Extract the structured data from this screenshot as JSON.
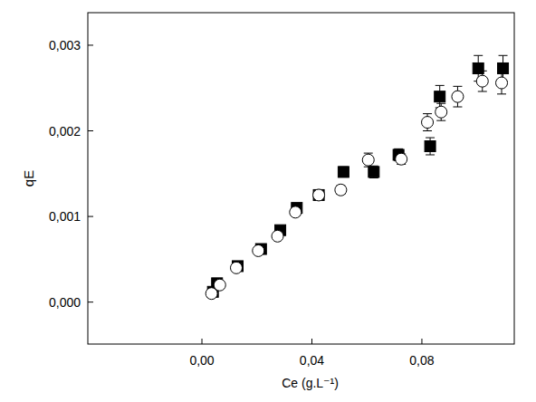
{
  "chart_data": {
    "type": "scatter",
    "x_label": "Ce  (g.L⁻¹)",
    "y_label": "qE",
    "xlim": [
      -0.0415,
      0.1136
    ],
    "ylim": [
      -0.00049,
      0.00338
    ],
    "xticks": [
      {
        "value": 0,
        "label": "0,00"
      },
      {
        "value": 0.04,
        "label": "0,04"
      },
      {
        "value": 0.08,
        "label": "0,08"
      }
    ],
    "yticks": [
      {
        "value": 0,
        "label": "0,000"
      },
      {
        "value": 0.001,
        "label": "0,001"
      },
      {
        "value": 0.002,
        "label": "0,002"
      },
      {
        "value": 0.003,
        "label": "0,003"
      }
    ],
    "grid": false,
    "series": [
      {
        "marker": "square",
        "color": "#000000",
        "x": [
          0.004,
          0.0055,
          0.013,
          0.0215,
          0.0285,
          0.0345,
          0.0425,
          0.0515,
          0.0625,
          0.0715,
          0.083,
          0.0865,
          0.1005,
          0.1095
        ],
        "values": [
          0.00012,
          0.00022,
          0.00042,
          0.00062,
          0.00084,
          0.0011,
          0.00125,
          0.00152,
          0.00152,
          0.00172,
          0.00182,
          0.0024,
          0.00273,
          0.00273
        ],
        "errors": [
          2e-05,
          2e-05,
          2e-05,
          3e-05,
          3e-05,
          4e-05,
          5e-05,
          6e-05,
          7e-05,
          7e-05,
          0.0001,
          0.00013,
          0.00015,
          0.00015
        ]
      },
      {
        "marker": "circle-open",
        "color": "#000000",
        "x": [
          0.0035,
          0.0065,
          0.0125,
          0.0205,
          0.0275,
          0.034,
          0.0425,
          0.0505,
          0.0605,
          0.0725,
          0.082,
          0.087,
          0.093,
          0.102,
          0.109
        ],
        "values": [
          0.0001,
          0.0002,
          0.0004,
          0.0006,
          0.00077,
          0.00105,
          0.00125,
          0.00131,
          0.00166,
          0.00167,
          0.0021,
          0.00222,
          0.0024,
          0.00258,
          0.00256
        ],
        "errors": [
          4e-05,
          4e-05,
          3e-05,
          3e-05,
          3e-05,
          4e-05,
          5e-05,
          5e-05,
          8e-05,
          6e-05,
          0.0001,
          0.0001,
          0.00012,
          0.00012,
          0.00013
        ]
      }
    ]
  }
}
